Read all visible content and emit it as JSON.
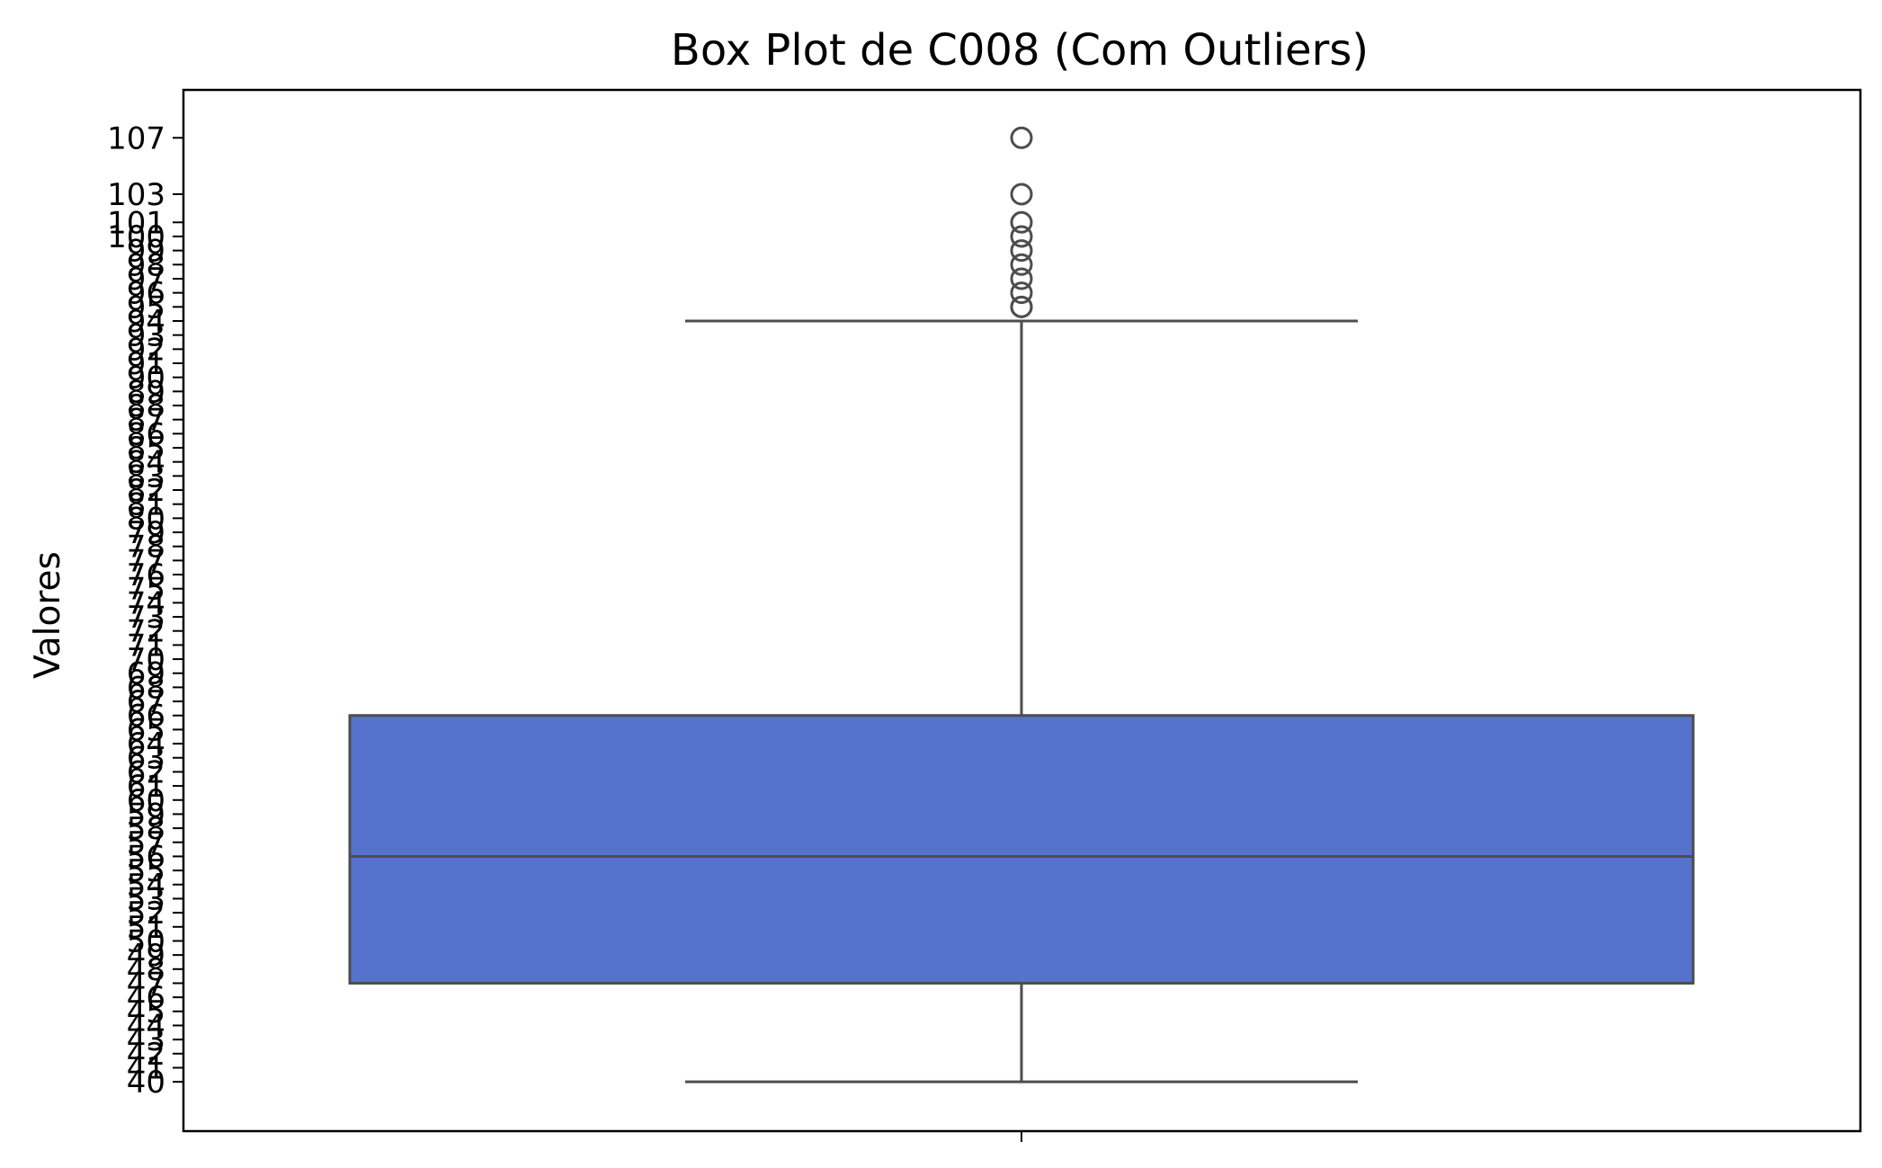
{
  "chart_data": {
    "type": "box",
    "title": "Box Plot de C008 (Com Outliers)",
    "xlabel": "",
    "ylabel": "Valores",
    "y_ticks": [
      40,
      41,
      42,
      43,
      44,
      45,
      46,
      47,
      48,
      49,
      50,
      51,
      52,
      53,
      54,
      55,
      56,
      57,
      58,
      59,
      60,
      61,
      62,
      63,
      64,
      65,
      66,
      67,
      68,
      69,
      70,
      71,
      72,
      73,
      74,
      75,
      76,
      77,
      78,
      79,
      80,
      81,
      82,
      83,
      84,
      85,
      86,
      87,
      88,
      89,
      90,
      91,
      92,
      93,
      94,
      95,
      96,
      97,
      98,
      99,
      100,
      101,
      103,
      107
    ],
    "ylim": [
      36.5,
      110.4
    ],
    "grid": false,
    "box": {
      "whisker_low": 40,
      "q1": 47,
      "median": 56,
      "q3": 66,
      "whisker_high": 94,
      "outliers": [
        95,
        95,
        96,
        97,
        98,
        99,
        100,
        101,
        103,
        107
      ]
    },
    "colors": {
      "box_fill": "#5573cc",
      "line": "#4d4d4d",
      "axes": "#000000"
    }
  }
}
